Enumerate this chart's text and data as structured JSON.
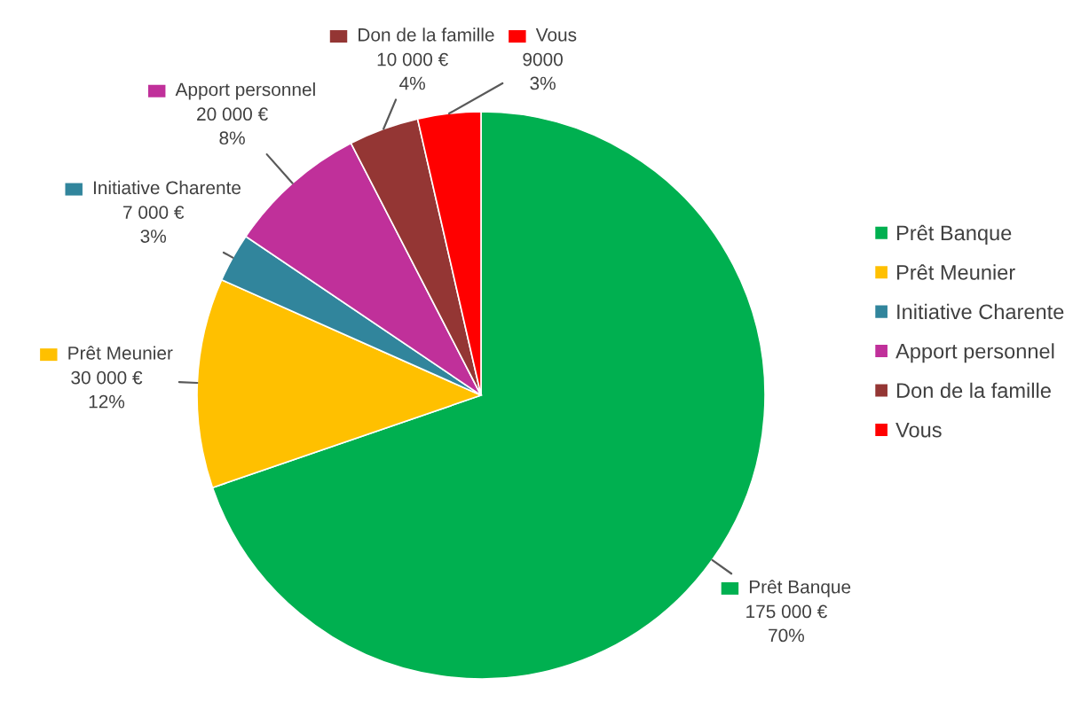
{
  "chart_data": {
    "type": "pie",
    "categories": [
      "Prêt Banque",
      "Prêt Meunier",
      "Initiative Charente",
      "Apport personnel",
      "Don de la famille",
      "Vous"
    ],
    "values": [
      175000,
      30000,
      7000,
      20000,
      10000,
      9000
    ],
    "colors": [
      "#00b050",
      "#ffc000",
      "#31859c",
      "#c0309a",
      "#943634",
      "#ff0000"
    ],
    "value_labels": [
      "175 000 €\n70%",
      "30 000 €\n12%",
      "7 000 €\n3%",
      "20 000 €\n8%",
      "10 000 €\n4%",
      "9000\n3%"
    ],
    "legend": "right"
  }
}
